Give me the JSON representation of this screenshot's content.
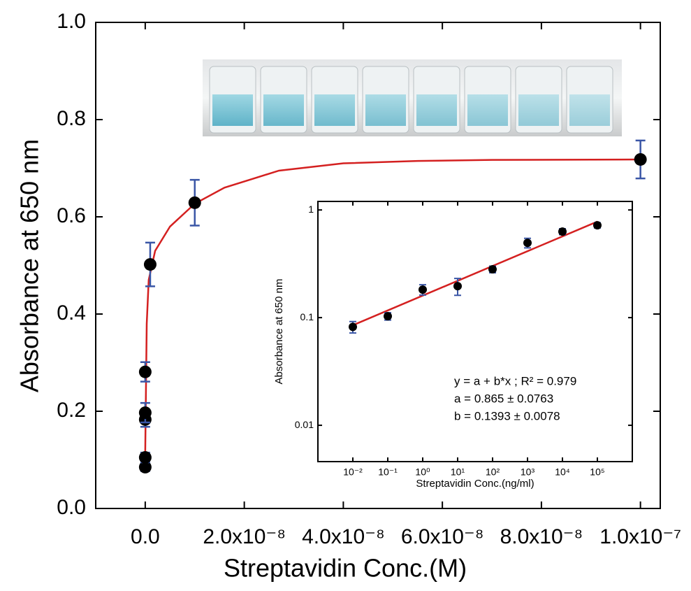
{
  "chart_data": [
    {
      "type": "scatter",
      "xlabel": "Streptavidin Conc.(M)",
      "ylabel": "Absorbance at 650 nm",
      "x": [
        0,
        0,
        0,
        0,
        0,
        1e-09,
        1e-08,
        1e-07
      ],
      "values": [
        0.085,
        0.105,
        0.183,
        0.197,
        0.281,
        0.502,
        0.629,
        0.718
      ],
      "errors": [
        0.008,
        0.01,
        0.015,
        0.02,
        0.02,
        0.045,
        0.047,
        0.039
      ],
      "color": "#000000",
      "error_color": "#3a56a6",
      "fit": {
        "x": [
          0,
          3e-10,
          7e-10,
          2e-09,
          5e-09,
          1e-08,
          1.6e-08,
          2.7e-08,
          4e-08,
          5.5e-08,
          7e-08,
          1e-07
        ],
        "values": [
          0.118,
          0.38,
          0.47,
          0.53,
          0.58,
          0.627,
          0.66,
          0.695,
          0.71,
          0.715,
          0.717,
          0.718
        ],
        "color": "#d42020"
      },
      "xlim": [
        -1e-08,
        1.04e-07
      ],
      "ylim": [
        0,
        1
      ],
      "xticks": [
        {
          "value": 0,
          "label": "0.0"
        },
        {
          "value": 2e-08,
          "label": "2.0x10⁻⁸"
        },
        {
          "value": 4e-08,
          "label": "4.0x10⁻⁸"
        },
        {
          "value": 6e-08,
          "label": "6.0x10⁻⁸"
        },
        {
          "value": 8e-08,
          "label": "8.0x10⁻⁸"
        },
        {
          "value": 1e-07,
          "label": "1.0x10⁻⁷"
        }
      ],
      "yticks": [
        {
          "value": 0,
          "label": "0.0"
        },
        0.2,
        0.4,
        0.6,
        0.8,
        {
          "value": 1,
          "label": "1.0"
        }
      ]
    },
    {
      "type": "scatter",
      "xlabel": "Streptavidin Conc.(ng/ml)",
      "ylabel": "Absorbance at 650 nm",
      "x_scale": "log",
      "y_scale": "log",
      "x": [
        0.01,
        0.1,
        1,
        10,
        100,
        1000,
        10000,
        100000
      ],
      "values": [
        0.082,
        0.103,
        0.182,
        0.196,
        0.281,
        0.495,
        0.63,
        0.72
      ],
      "errors": [
        0.01,
        0.008,
        0.02,
        0.035,
        0.02,
        0.05,
        0.04,
        0.04
      ],
      "color": "#000000",
      "error_color": "#3a56a6",
      "fit": {
        "x": [
          0.01,
          100000
        ],
        "values": [
          0.085,
          0.78
        ],
        "color": "#d42020"
      },
      "xlim": [
        0.001,
        1000000
      ],
      "ylim": [
        0.0046,
        1.2
      ],
      "xticks": [
        {
          "value": 0.01,
          "label": "10⁻²"
        },
        {
          "value": 0.1,
          "label": "10⁻¹"
        },
        {
          "value": 1,
          "label": "10⁰"
        },
        {
          "value": 10,
          "label": "10¹"
        },
        {
          "value": 100,
          "label": "10²"
        },
        {
          "value": 1000,
          "label": "10³"
        },
        {
          "value": 10000,
          "label": "10⁴"
        },
        {
          "value": 100000,
          "label": "10⁵"
        }
      ],
      "yticks": [
        0.01,
        0.1,
        1
      ],
      "annotations": [
        "y = a + b*x ; R² = 0.979",
        "a = 0.865  ± 0.0763",
        "b = 0.1393  ± 0.0078"
      ]
    }
  ]
}
